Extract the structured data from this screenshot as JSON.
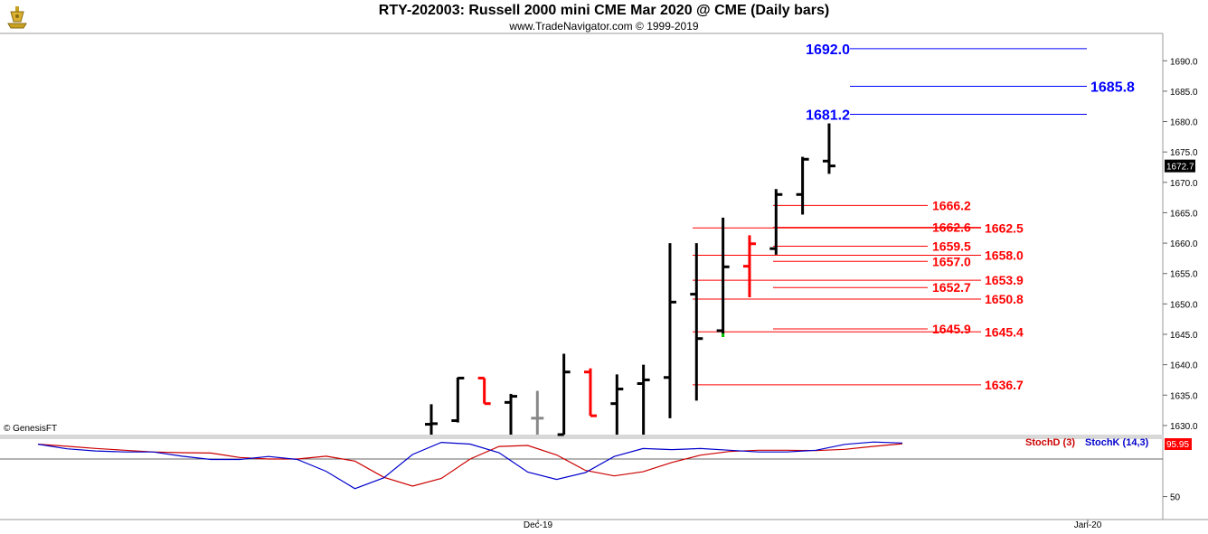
{
  "title": "RTY-202003:  Russell 2000 mini CME Mar 2020 @ CME  (Daily bars)",
  "subtitle": "www.TradeNavigator.com © 1999-2019",
  "watermark": "© GenesisFT",
  "colors": {
    "up": "#000000",
    "down": "#ff0000",
    "neutral": "#888888",
    "blue": "#0000ff",
    "stochD": "#cc0000",
    "stochK": "#0000cc"
  },
  "chart_data": [
    {
      "type": "ohlc",
      "name": "price",
      "ylim": [
        1628.5,
        1694.5
      ],
      "y_ticks": [
        1630.0,
        1635.0,
        1640.0,
        1645.0,
        1650.0,
        1655.0,
        1660.0,
        1665.0,
        1670.0,
        1675.0,
        1680.0,
        1685.0,
        1690.0
      ],
      "last_price_label": "1672.7",
      "bars": [
        {
          "o": 1630.2,
          "h": 1633.5,
          "l": 1628.5,
          "c": 1630.3,
          "color": "black"
        },
        {
          "o": 1630.8,
          "h": 1637.9,
          "l": 1630.5,
          "c": 1637.8,
          "color": "black"
        },
        {
          "o": 1637.8,
          "h": 1637.8,
          "l": 1633.6,
          "c": 1633.6,
          "color": "red"
        },
        {
          "o": 1633.8,
          "h": 1635.2,
          "l": 1628.5,
          "c": 1634.8,
          "color": "black"
        },
        {
          "o": 1631.2,
          "h": 1635.7,
          "l": 1628.5,
          "c": 1631.2,
          "color": "gray"
        },
        {
          "o": 1628.5,
          "h": 1641.8,
          "l": 1628.5,
          "c": 1638.8,
          "color": "black"
        },
        {
          "o": 1638.8,
          "h": 1639.4,
          "l": 1631.6,
          "c": 1631.6,
          "color": "red"
        },
        {
          "o": 1633.6,
          "h": 1638.4,
          "l": 1628.5,
          "c": 1636.0,
          "color": "black"
        },
        {
          "o": 1636.9,
          "h": 1640.0,
          "l": 1628.5,
          "c": 1637.5,
          "color": "black"
        },
        {
          "o": 1637.9,
          "h": 1660.0,
          "l": 1631.2,
          "c": 1650.3,
          "color": "black"
        },
        {
          "o": 1651.6,
          "h": 1660.0,
          "l": 1634.1,
          "c": 1644.3,
          "color": "black"
        },
        {
          "o": 1645.6,
          "h": 1664.2,
          "l": 1645.0,
          "c": 1656.1,
          "color": "black"
        },
        {
          "o": 1656.2,
          "h": 1661.3,
          "l": 1651.1,
          "c": 1659.9,
          "color": "red"
        },
        {
          "o": 1659.1,
          "h": 1668.9,
          "l": 1658.1,
          "c": 1668.0,
          "color": "black"
        },
        {
          "o": 1668.0,
          "h": 1674.2,
          "l": 1664.7,
          "c": 1673.8,
          "color": "black"
        },
        {
          "o": 1673.5,
          "h": 1679.7,
          "l": 1671.4,
          "c": 1672.7,
          "color": "black"
        }
      ],
      "levels_blue": [
        {
          "value": 1692.0,
          "label": "1692.0"
        },
        {
          "value": 1685.8,
          "label": "1685.8"
        },
        {
          "value": 1681.2,
          "label": "1681.2"
        }
      ],
      "levels_red": [
        {
          "value": 1666.2,
          "label": "1666.2"
        },
        {
          "value": 1662.6,
          "label": "1662.6"
        },
        {
          "value": 1662.5,
          "label": "1662.5"
        },
        {
          "value": 1659.5,
          "label": "1659.5"
        },
        {
          "value": 1658.0,
          "label": "1658.0"
        },
        {
          "value": 1657.0,
          "label": "1657.0"
        },
        {
          "value": 1653.9,
          "label": "1653.9"
        },
        {
          "value": 1652.7,
          "label": "1652.7"
        },
        {
          "value": 1650.8,
          "label": "1650.8"
        },
        {
          "value": 1645.9,
          "label": "1645.9"
        },
        {
          "value": 1645.4,
          "label": "1645.4"
        },
        {
          "value": 1636.7,
          "label": "1636.7"
        }
      ]
    },
    {
      "type": "line",
      "name": "stochastic",
      "ylim": [
        30,
        100
      ],
      "y_ticks": [
        50
      ],
      "last_value_label": "95.95",
      "legend": [
        "StochD (3)",
        "StochK (14,3)"
      ],
      "series": [
        {
          "name": "StochD (3)",
          "color": "red",
          "values": [
            95.6,
            93.8,
            91.9,
            90.3,
            88.8,
            88.2,
            87.9,
            84.0,
            82.7,
            82.7,
            85.1,
            80.9,
            66.8,
            59.1,
            65.8,
            82.7,
            93.6,
            94.5,
            86.2,
            72.8,
            68.0,
            71.6,
            79.7,
            86.1,
            89.2,
            90.3,
            90.3,
            90.0,
            91.1,
            93.7,
            95.95
          ]
        },
        {
          "name": "StochK (14,3)",
          "color": "blue",
          "values": [
            95.6,
            91.6,
            89.7,
            88.8,
            88.8,
            85.1,
            82.3,
            82.3,
            84.9,
            82.3,
            72.0,
            56.9,
            66.3,
            86.6,
            97.2,
            95.7,
            88.2,
            71.3,
            64.9,
            70.9,
            84.9,
            91.8,
            90.9,
            91.8,
            90.3,
            88.8,
            88.8,
            90.3,
            95.4,
            97.5,
            96.6
          ]
        }
      ],
      "x_labels": [
        "Dec-19",
        "Jan-20"
      ]
    }
  ]
}
